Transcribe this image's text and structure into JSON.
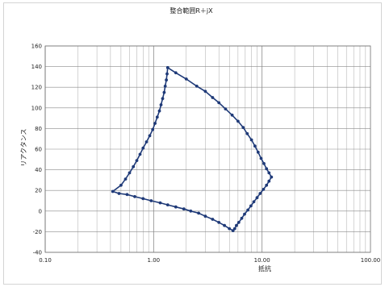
{
  "chart_data": {
    "type": "scatter",
    "title": "整合範囲R＋jX",
    "xlabel": "抵抗",
    "ylabel": "リアクタンス",
    "x_scale": "log",
    "xlim": [
      0.1,
      100
    ],
    "ylim": [
      -40,
      160
    ],
    "x_ticks": [
      "0.10",
      "1.00",
      "10.00",
      "100.00"
    ],
    "y_ticks": [
      "-40",
      "-20",
      "0",
      "20",
      "40",
      "60",
      "80",
      "100",
      "120",
      "140",
      "160"
    ],
    "grid": true,
    "legend": "none",
    "series": [
      {
        "color": "#1f3a78",
        "marker": "circle",
        "line": true,
        "points": [
          {
            "x": 1.35,
            "y": 139
          },
          {
            "x": 1.6,
            "y": 134
          },
          {
            "x": 2.0,
            "y": 128
          },
          {
            "x": 2.5,
            "y": 121
          },
          {
            "x": 3.0,
            "y": 116
          },
          {
            "x": 3.5,
            "y": 110
          },
          {
            "x": 4.0,
            "y": 105
          },
          {
            "x": 4.6,
            "y": 99
          },
          {
            "x": 5.3,
            "y": 93
          },
          {
            "x": 6.0,
            "y": 87
          },
          {
            "x": 6.7,
            "y": 81
          },
          {
            "x": 7.3,
            "y": 75
          },
          {
            "x": 8.0,
            "y": 69
          },
          {
            "x": 8.6,
            "y": 63
          },
          {
            "x": 9.2,
            "y": 57
          },
          {
            "x": 9.8,
            "y": 51
          },
          {
            "x": 10.4,
            "y": 46
          },
          {
            "x": 11.0,
            "y": 41
          },
          {
            "x": 11.6,
            "y": 37
          },
          {
            "x": 12.2,
            "y": 33
          },
          {
            "x": 11.6,
            "y": 29
          },
          {
            "x": 11.0,
            "y": 25
          },
          {
            "x": 10.3,
            "y": 21
          },
          {
            "x": 9.6,
            "y": 17
          },
          {
            "x": 9.0,
            "y": 13
          },
          {
            "x": 8.4,
            "y": 9
          },
          {
            "x": 7.9,
            "y": 5
          },
          {
            "x": 7.4,
            "y": 1
          },
          {
            "x": 6.9,
            "y": -3
          },
          {
            "x": 6.5,
            "y": -7
          },
          {
            "x": 6.1,
            "y": -11
          },
          {
            "x": 5.8,
            "y": -14
          },
          {
            "x": 5.6,
            "y": -17
          },
          {
            "x": 5.4,
            "y": -19
          },
          {
            "x": 5.0,
            "y": -17
          },
          {
            "x": 4.5,
            "y": -14
          },
          {
            "x": 4.0,
            "y": -11
          },
          {
            "x": 3.5,
            "y": -8
          },
          {
            "x": 3.0,
            "y": -5
          },
          {
            "x": 2.6,
            "y": -2
          },
          {
            "x": 2.2,
            "y": 0
          },
          {
            "x": 1.9,
            "y": 2
          },
          {
            "x": 1.6,
            "y": 4
          },
          {
            "x": 1.35,
            "y": 6
          },
          {
            "x": 1.15,
            "y": 8
          },
          {
            "x": 0.95,
            "y": 10
          },
          {
            "x": 0.8,
            "y": 12
          },
          {
            "x": 0.67,
            "y": 14
          },
          {
            "x": 0.57,
            "y": 16
          },
          {
            "x": 0.48,
            "y": 17
          },
          {
            "x": 0.42,
            "y": 19
          },
          {
            "x": 0.5,
            "y": 25
          },
          {
            "x": 0.55,
            "y": 31
          },
          {
            "x": 0.6,
            "y": 37
          },
          {
            "x": 0.65,
            "y": 43
          },
          {
            "x": 0.7,
            "y": 49
          },
          {
            "x": 0.75,
            "y": 55
          },
          {
            "x": 0.8,
            "y": 61
          },
          {
            "x": 0.86,
            "y": 67
          },
          {
            "x": 0.92,
            "y": 73
          },
          {
            "x": 0.98,
            "y": 79
          },
          {
            "x": 1.03,
            "y": 85
          },
          {
            "x": 1.08,
            "y": 91
          },
          {
            "x": 1.13,
            "y": 97
          },
          {
            "x": 1.17,
            "y": 103
          },
          {
            "x": 1.21,
            "y": 109
          },
          {
            "x": 1.25,
            "y": 115
          },
          {
            "x": 1.28,
            "y": 121
          },
          {
            "x": 1.31,
            "y": 127
          },
          {
            "x": 1.33,
            "y": 133
          },
          {
            "x": 1.35,
            "y": 139
          }
        ]
      }
    ]
  }
}
